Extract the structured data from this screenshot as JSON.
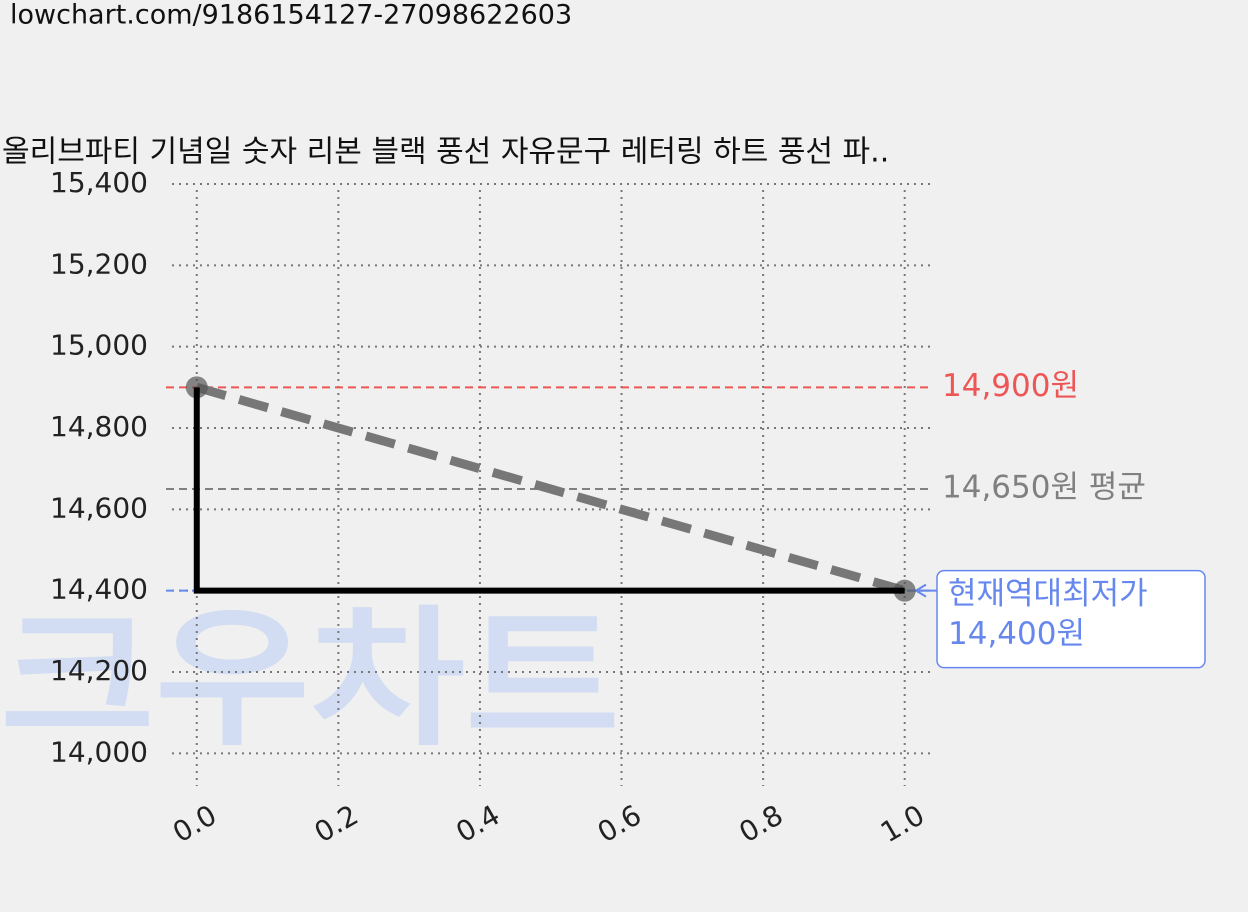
{
  "url": "lowchart.com/9186154127-27098622603",
  "chart_data": {
    "type": "line",
    "title": "올리브파티 기념일 숫자 리본 블랙 풍선 자유문구 레터링 하트 풍선 파..",
    "watermark": "크우차트",
    "xlim": [
      -0.035,
      1.04
    ],
    "ylim": [
      13900,
      15400
    ],
    "xticks": [
      {
        "value": 0,
        "label": "0.0"
      },
      0.2,
      0.4,
      0.6,
      0.8,
      {
        "value": 1,
        "label": "1.0"
      }
    ],
    "yticks": [
      {
        "value": 14000,
        "label": "14,000"
      },
      {
        "value": 14200,
        "label": "14,200"
      },
      {
        "value": 14400,
        "label": "14,400"
      },
      {
        "value": 14600,
        "label": "14,600"
      },
      {
        "value": 14800,
        "label": "14,800"
      },
      {
        "value": 15000,
        "label": "15,000"
      },
      {
        "value": 15200,
        "label": "15,200"
      },
      {
        "value": 15400,
        "label": "15,400"
      }
    ],
    "grid": true,
    "series": [
      {
        "color": "#777777",
        "style": "dashed",
        "marker": true,
        "x": [
          0,
          1
        ],
        "values": [
          14900,
          14400
        ]
      },
      {
        "color": "#000000",
        "style": "solid",
        "marker": false,
        "x": [
          0,
          0,
          1
        ],
        "values": [
          14900,
          14400,
          14400
        ]
      }
    ],
    "hlines": [
      {
        "value": 14900,
        "label": "14,900원",
        "color": "#ee5555"
      },
      {
        "value": 14650,
        "label": "14,650원 평균",
        "color": "#808080"
      },
      {
        "value": 14400,
        "title": "현재역대최저가",
        "label": "14,400원",
        "color": "#6688ee"
      }
    ]
  }
}
